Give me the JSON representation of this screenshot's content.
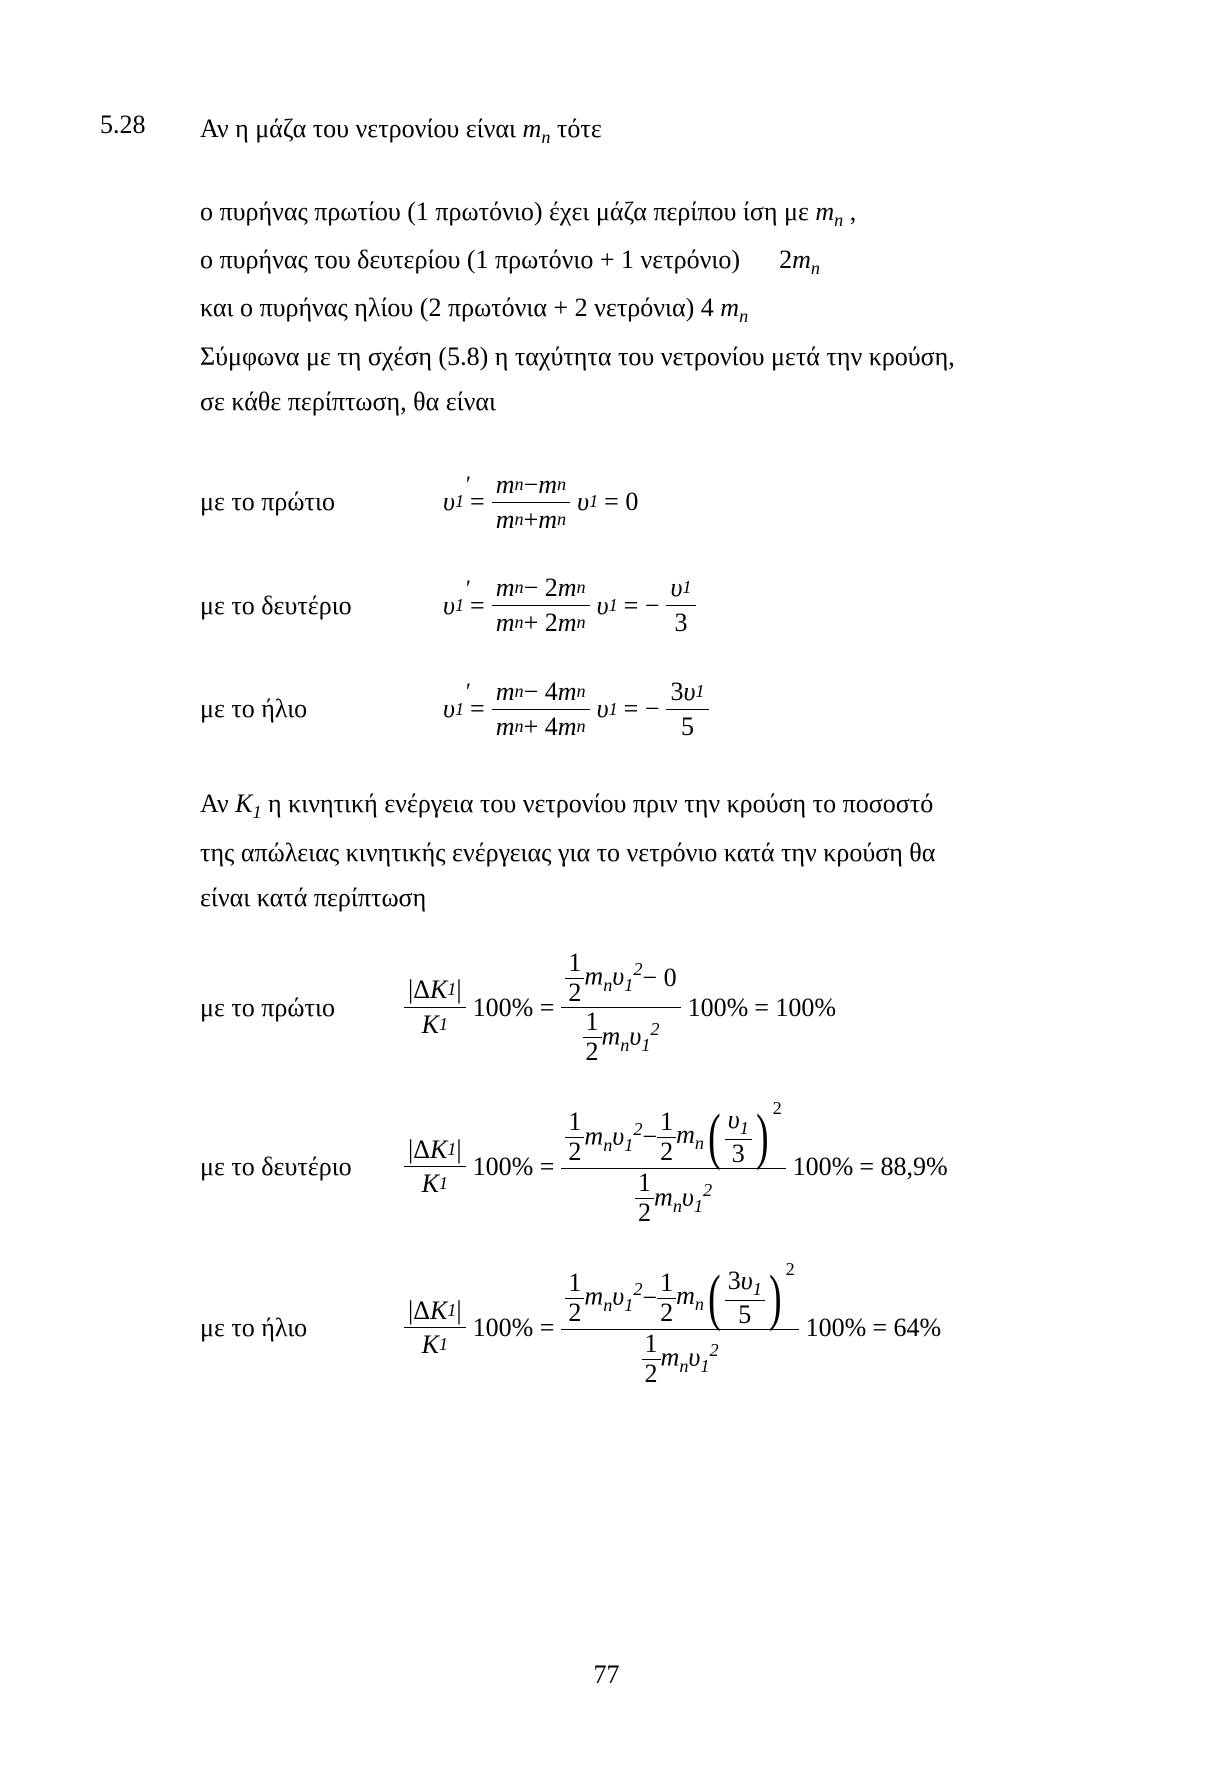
{
  "problem": {
    "number": "5.28",
    "title_prefix": "Αν η μάζα του νετρονίου είναι ",
    "mass_symbol": "mₙ",
    "title_suffix": " τότε"
  },
  "intro": {
    "l1_a": "ο πυρήνας πρωτίου (1 πρωτόνιο) έχει μάζα περίπου ίση με ",
    "l1_b": " ,",
    "l2_a": "ο πυρήνας του δευτερίου (1 πρωτόνιο + 1 νετρόνιο)",
    "l2_b": "2",
    "l3_a": "και ο πυρήνας ηλίου (2 πρωτόνια + 2 νετρόνια) 4 ",
    "l4": "Σύμφωνα με τη σχέση (5.8) η ταχύτητα του νετρονίου μετά την κρούση,",
    "l5": "σε κάθε περίπτωση, θα είναι"
  },
  "labels": {
    "protium": "με το πρώτιο",
    "deuterium": "με το δευτέριο",
    "helium": "με το ήλιο"
  },
  "mid": {
    "l1_a": "Αν ",
    "l1_k": "K",
    "l1_sub": "1",
    "l1_b": " η κινητική ενέργεια του νετρονίου πριν την κρούση το ποσοστό",
    "l2": "της απώλειας κινητικής ενέργειας για το νετρόνιο κατά την κρούση θα",
    "l3": "είναι κατά περίπτωση"
  },
  "results": {
    "r1": " = 100%",
    "r2": " = 88,9%",
    "r3": " = 64%"
  },
  "page_number": "77",
  "sym": {
    "v": "υ",
    "m": "m",
    "n": "n",
    "one": "1",
    "two": "2",
    "three": "3",
    "four": "4",
    "five": "5",
    "K": "K",
    "delta": "Δ",
    "zero": "0",
    "hundred": "100%",
    "minus": "−",
    "plus": "+",
    "eq": " = ",
    "half_num": "1",
    "half_den": "2"
  }
}
